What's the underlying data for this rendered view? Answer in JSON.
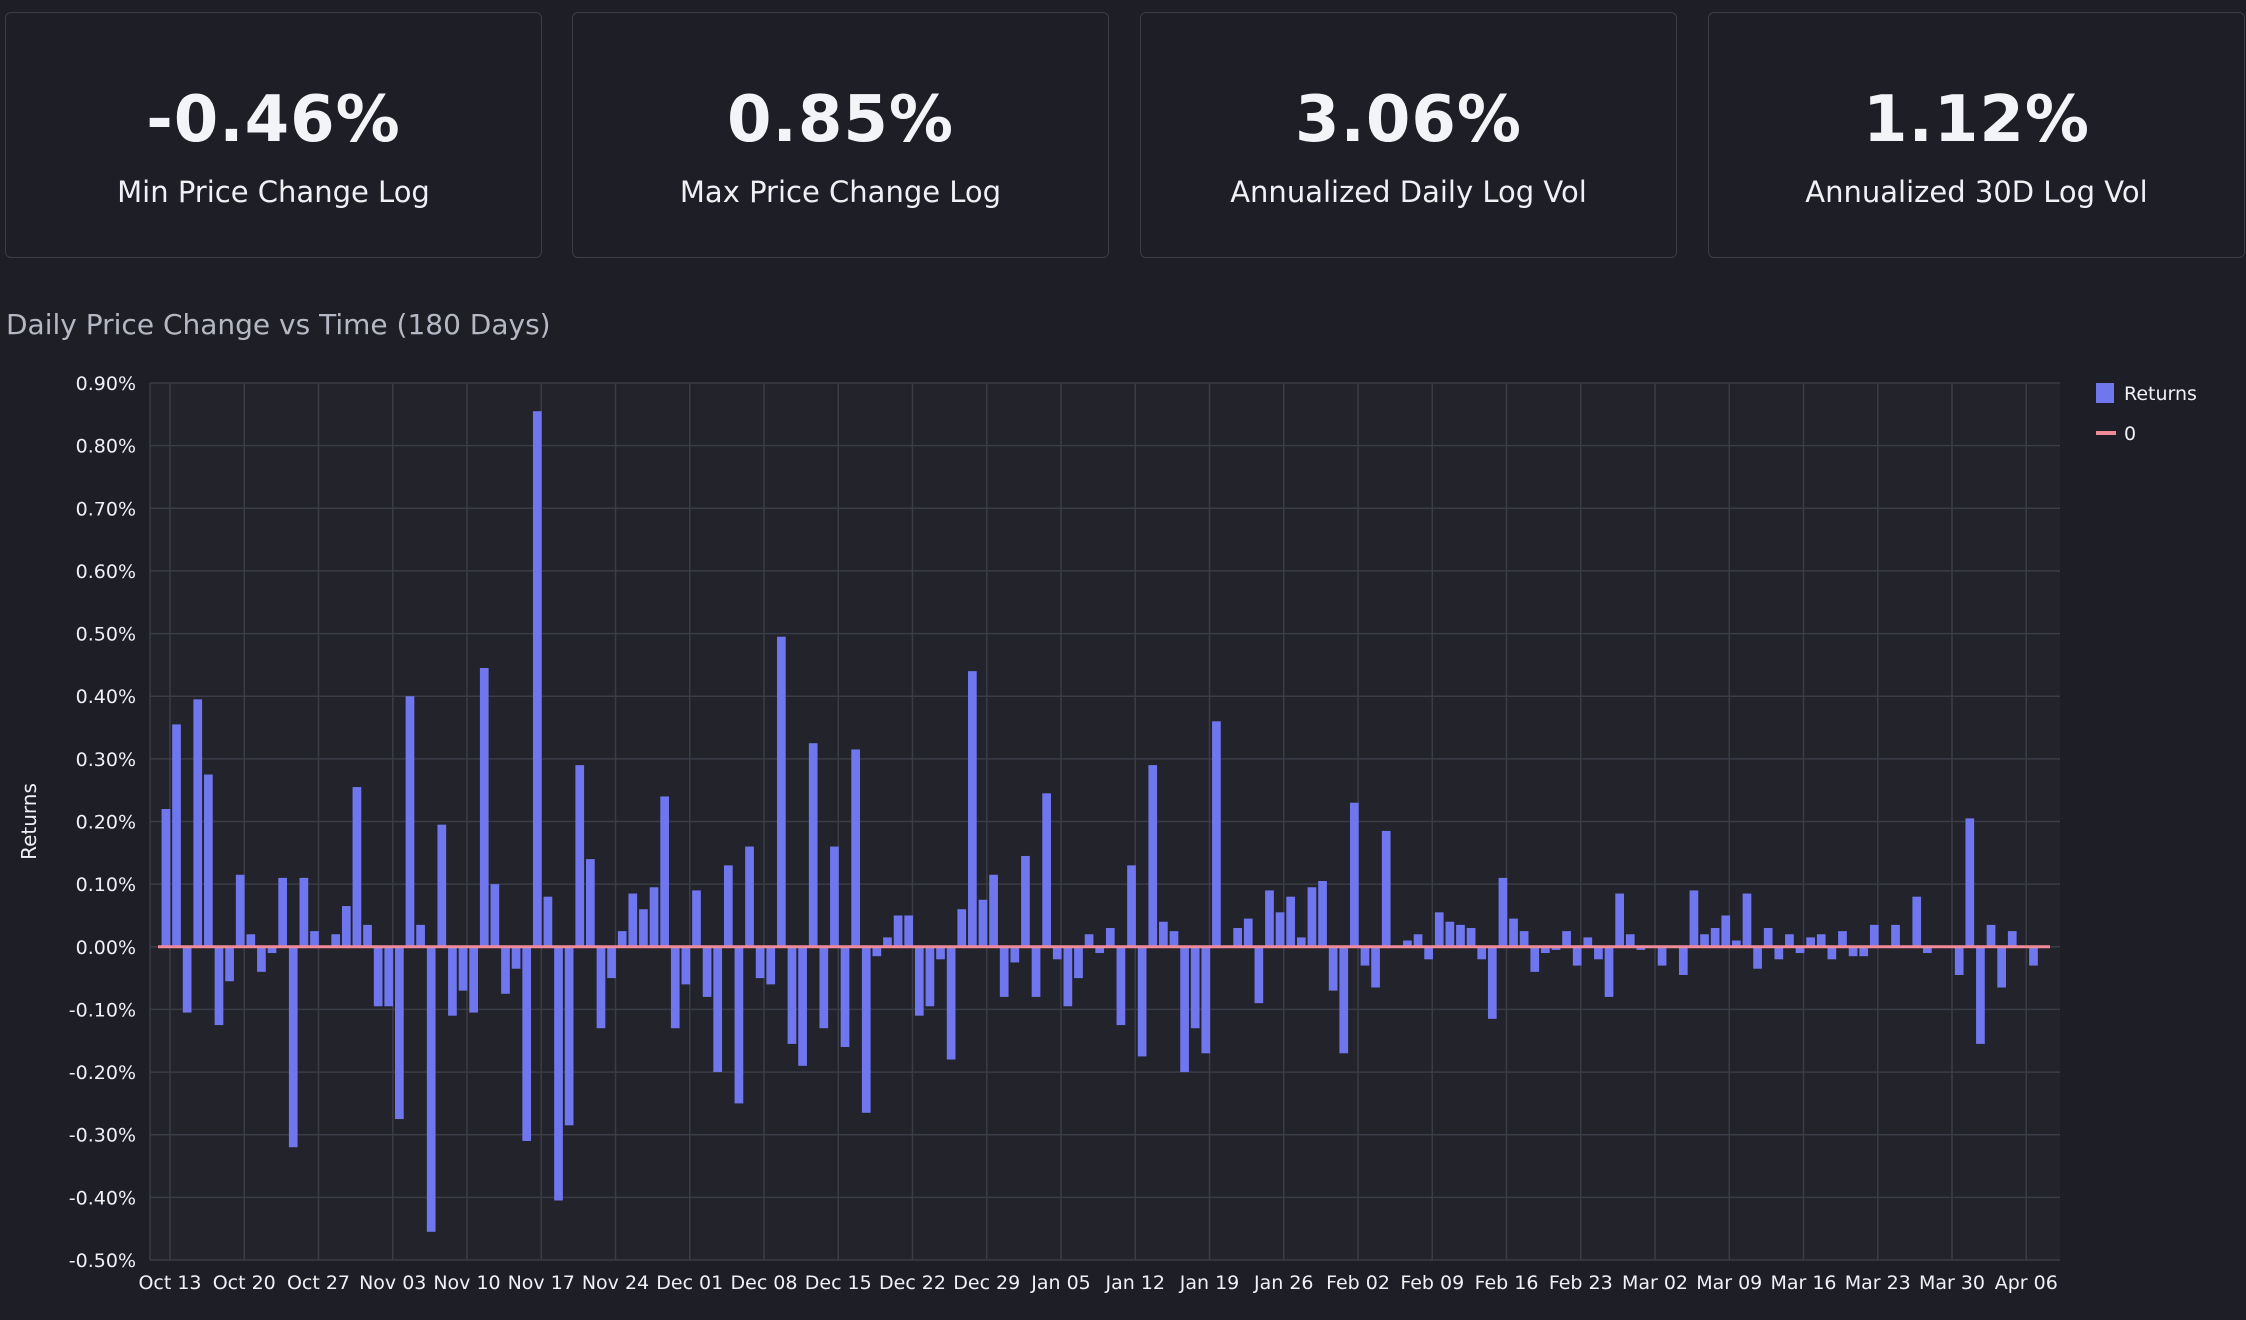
{
  "metrics": [
    {
      "value": "-0.46%",
      "label": "Min Price Change Log"
    },
    {
      "value": "0.85%",
      "label": "Max Price Change Log"
    },
    {
      "value": "3.06%",
      "label": "Annualized Daily Log Vol"
    },
    {
      "value": "1.12%",
      "label": "Annualized 30D Log Vol"
    }
  ],
  "chart_title": "Daily Price Change vs Time (180 Days)",
  "colors": {
    "bar": "#7077ee",
    "zero_line": "#f08a99",
    "grid": "#3a3c47",
    "text": "#f0f1f5"
  },
  "chart_data": {
    "type": "bar",
    "title": "Daily Price Change vs Time (180 Days)",
    "xlabel": "",
    "ylabel": "Returns",
    "ylim": [
      -0.5,
      0.9
    ],
    "y_unit": "%",
    "y_ticks": [
      -0.5,
      -0.4,
      -0.3,
      -0.2,
      -0.1,
      0.0,
      0.1,
      0.2,
      0.3,
      0.4,
      0.5,
      0.6,
      0.7,
      0.8,
      0.9
    ],
    "y_tick_labels": [
      "-0.50%",
      "-0.40%",
      "-0.30%",
      "-0.20%",
      "-0.10%",
      "0.00%",
      "0.10%",
      "0.20%",
      "0.30%",
      "0.40%",
      "0.50%",
      "0.60%",
      "0.70%",
      "0.80%",
      "0.90%"
    ],
    "x_tick_labels": [
      "Oct 13",
      "Oct 20",
      "Oct 27",
      "Nov 03",
      "Nov 10",
      "Nov 17",
      "Nov 24",
      "Dec 01",
      "Dec 08",
      "Dec 15",
      "Dec 22",
      "Dec 29",
      "Jan 05",
      "Jan 12",
      "Jan 19",
      "Jan 26",
      "Feb 02",
      "Feb 09",
      "Feb 16",
      "Feb 23",
      "Mar 02",
      "Mar 09",
      "Mar 16",
      "Mar 23",
      "Mar 30",
      "Apr 06"
    ],
    "grid": true,
    "legend_position": "top-right",
    "series": [
      {
        "name": "Returns",
        "kind": "bar",
        "values": [
          0.22,
          0.355,
          -0.105,
          0.395,
          0.275,
          -0.125,
          -0.055,
          0.115,
          0.02,
          -0.04,
          -0.01,
          0.11,
          -0.32,
          0.11,
          0.025,
          0.0,
          0.02,
          0.065,
          0.255,
          0.035,
          -0.095,
          -0.095,
          -0.275,
          0.4,
          0.035,
          -0.455,
          0.195,
          -0.11,
          -0.07,
          -0.105,
          0.445,
          0.1,
          -0.075,
          -0.035,
          -0.31,
          0.855,
          0.08,
          -0.405,
          -0.285,
          0.29,
          0.14,
          -0.13,
          -0.05,
          0.025,
          0.085,
          0.06,
          0.095,
          0.24,
          -0.13,
          -0.06,
          0.09,
          -0.08,
          -0.2,
          0.13,
          -0.25,
          0.16,
          -0.05,
          -0.06,
          0.495,
          -0.155,
          -0.19,
          0.325,
          -0.13,
          0.16,
          -0.16,
          0.315,
          -0.265,
          -0.015,
          0.015,
          0.05,
          0.05,
          -0.11,
          -0.095,
          -0.02,
          -0.18,
          0.06,
          0.44,
          0.075,
          0.115,
          -0.08,
          -0.025,
          0.145,
          -0.08,
          0.245,
          -0.02,
          -0.095,
          -0.05,
          0.02,
          -0.01,
          0.03,
          -0.125,
          0.13,
          -0.175,
          0.29,
          0.04,
          0.025,
          -0.2,
          -0.13,
          -0.17,
          0.36,
          0.0,
          0.03,
          0.045,
          -0.09,
          0.09,
          0.055,
          0.08,
          0.015,
          0.095,
          0.105,
          -0.07,
          -0.17,
          0.23,
          -0.03,
          -0.065,
          0.185,
          0.0,
          0.01,
          0.02,
          -0.02,
          0.055,
          0.04,
          0.035,
          0.03,
          -0.02,
          -0.115,
          0.11,
          0.045,
          0.025,
          -0.04,
          -0.01,
          -0.005,
          0.025,
          -0.03,
          0.015,
          -0.02,
          -0.08,
          0.085,
          0.02,
          -0.005,
          0.0,
          -0.03,
          0.0,
          -0.045,
          0.09,
          0.02,
          0.03,
          0.05,
          0.01,
          0.085,
          -0.035,
          0.03,
          -0.02,
          0.02,
          -0.01,
          0.015,
          0.02,
          -0.02,
          0.025,
          -0.015,
          -0.015,
          0.035,
          0.0,
          0.035,
          0.0,
          0.08,
          -0.01,
          0.0,
          0.0,
          -0.045,
          0.205,
          -0.155,
          0.035,
          -0.065,
          0.025,
          0.0,
          -0.03
        ]
      },
      {
        "name": "0",
        "kind": "line",
        "value": 0.0
      }
    ]
  }
}
